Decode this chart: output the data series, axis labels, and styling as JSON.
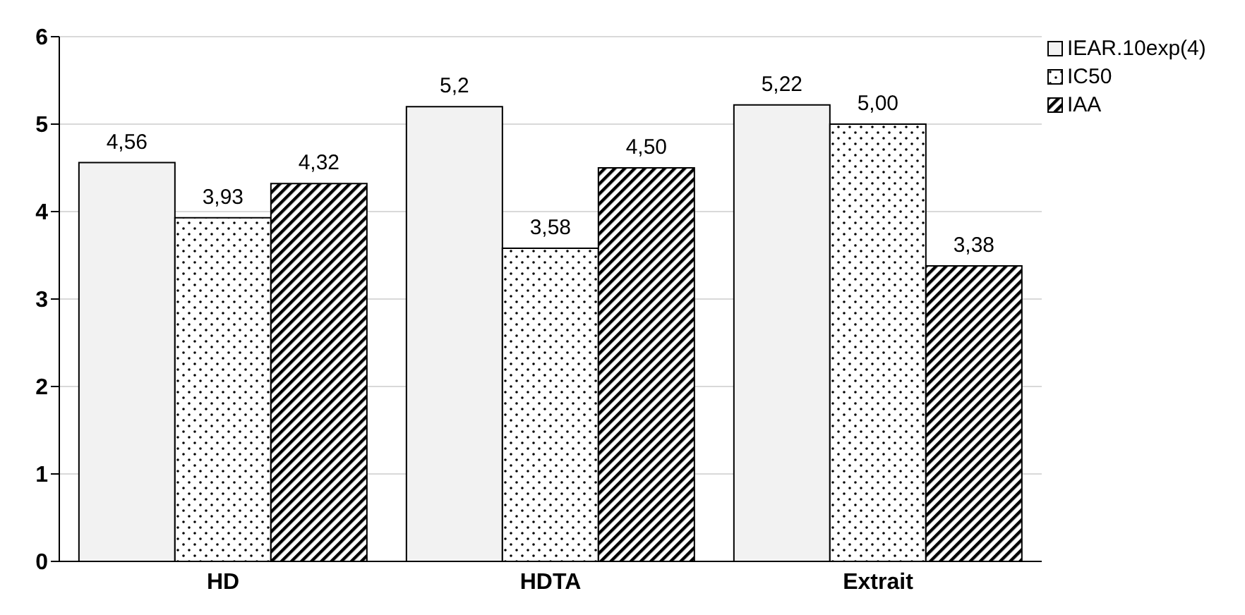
{
  "chart_data": {
    "type": "bar",
    "categories": [
      "HD",
      "HDTA",
      "Extrait"
    ],
    "series": [
      {
        "name": "IEAR.10exp(4)",
        "color": "#f2f2f2",
        "values": [
          4.56,
          5.2,
          5.22
        ],
        "value_labels": [
          "4,56",
          "5,2",
          "5,22"
        ]
      },
      {
        "name": "IC50",
        "color": "#000000",
        "values": [
          3.93,
          3.58,
          5.0
        ],
        "value_labels": [
          "3,93",
          "3,58",
          "5,00"
        ]
      },
      {
        "name": "IAA",
        "color": "#000000",
        "values": [
          4.32,
          4.5,
          3.38
        ],
        "value_labels": [
          "4,32",
          "4,50",
          "3,38"
        ]
      }
    ],
    "ylim": [
      0,
      6
    ],
    "yticks": [
      0,
      1,
      2,
      3,
      4,
      5,
      6
    ],
    "grid": "y",
    "legend": "top right"
  }
}
